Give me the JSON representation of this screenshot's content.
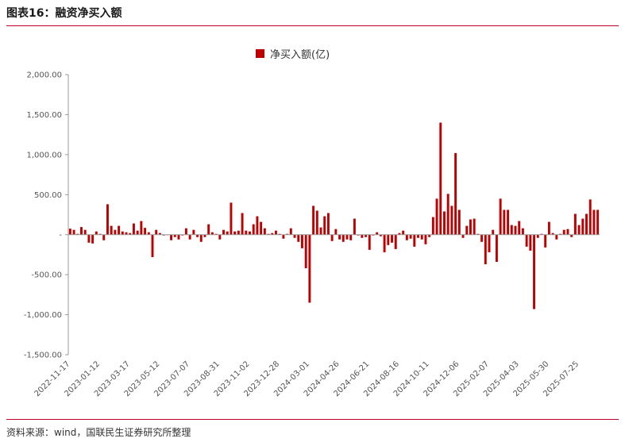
{
  "figure": {
    "title": "图表16：融资净买入额",
    "source": "资料来源：wind，国联民生证券研究所整理"
  },
  "colors": {
    "bar": "#c00000",
    "rule": "#c0002a",
    "axis": "#999999"
  },
  "chart_data": {
    "type": "bar",
    "title": "",
    "legend": [
      {
        "label": "净买入额(亿)",
        "color": "#c00000"
      }
    ],
    "legend_position": "top-center",
    "xlabel": "",
    "ylabel": "",
    "ylim": [
      -1500,
      2000
    ],
    "yticks": [
      -1500,
      -1000,
      -500,
      0,
      500,
      1000,
      1500,
      2000
    ],
    "ytick_labels": [
      "-1,500.00",
      "-1,000.00",
      "-500.00",
      "-",
      "500.00",
      "1,000.00",
      "1,500.00",
      "2,000.00"
    ],
    "xtick_labels": [
      "2022-11-17",
      "2023-01-12",
      "2023-03-17",
      "2023-05-12",
      "2023-07-07",
      "2023-08-31",
      "2023-11-02",
      "2023-12-28",
      "2024-03-01",
      "2024-04-26",
      "2024-06-21",
      "2024-08-16",
      "2024-10-11",
      "2024-12-06",
      "2025-02-07",
      "2025-04-03",
      "2025-05-30",
      "2025-07-25"
    ],
    "xtick_every": 8,
    "values": [
      75,
      60,
      10,
      95,
      60,
      -100,
      -110,
      40,
      10,
      -70,
      380,
      110,
      60,
      110,
      40,
      30,
      20,
      140,
      50,
      170,
      85,
      30,
      -280,
      60,
      20,
      -10,
      0,
      -70,
      -30,
      -60,
      -10,
      80,
      -60,
      60,
      -30,
      -90,
      -30,
      130,
      30,
      10,
      -60,
      60,
      40,
      400,
      40,
      50,
      270,
      50,
      40,
      130,
      230,
      160,
      80,
      10,
      20,
      50,
      10,
      -50,
      10,
      80,
      -40,
      -90,
      -170,
      -420,
      -850,
      360,
      300,
      90,
      230,
      270,
      -80,
      70,
      -60,
      -90,
      -60,
      -70,
      200,
      -10,
      -40,
      -30,
      -190,
      -10,
      30,
      -20,
      -220,
      -130,
      -100,
      -180,
      20,
      50,
      -70,
      -50,
      -150,
      -40,
      -60,
      -120,
      -30,
      220,
      450,
      1400,
      290,
      510,
      360,
      1020,
      310,
      -40,
      110,
      190,
      200,
      10,
      -90,
      -370,
      -220,
      60,
      -340,
      450,
      310,
      310,
      120,
      110,
      170,
      80,
      -150,
      -200,
      -930,
      -40,
      10,
      -160,
      160,
      20,
      -60,
      10,
      60,
      70,
      -30,
      260,
      120,
      200,
      260,
      440,
      310,
      310
    ]
  }
}
